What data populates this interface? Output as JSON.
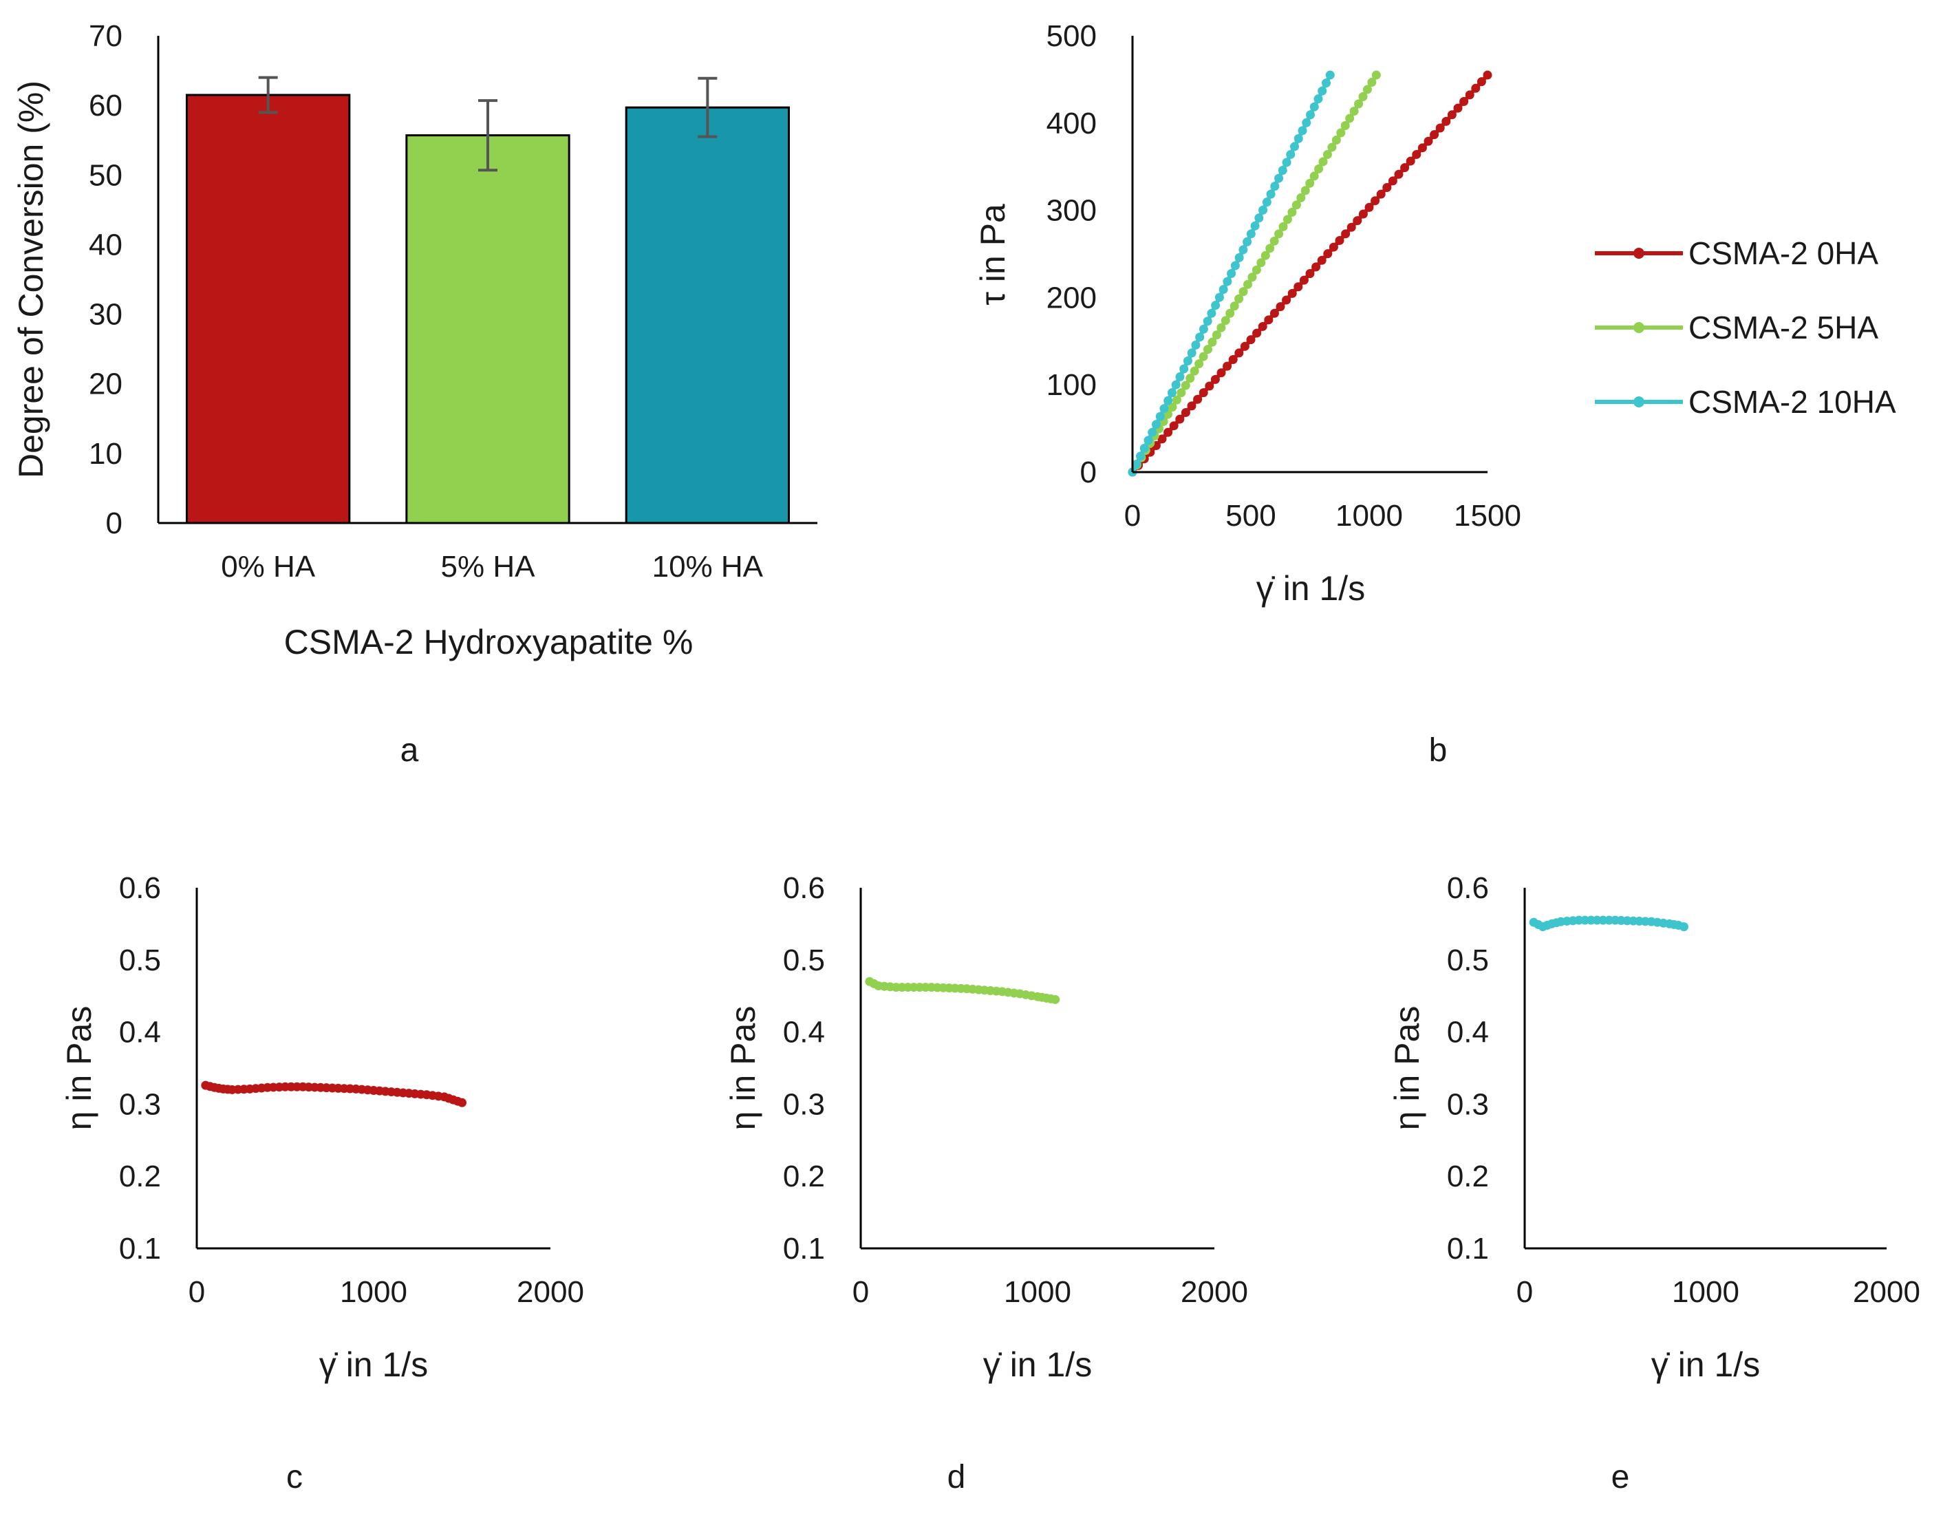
{
  "colors": {
    "red": "#bb1616",
    "green": "#92d050",
    "teal": "#1897ab",
    "cyan": "#3ec4cc",
    "axis": "#000000",
    "errorbar": "#555555"
  },
  "chart_data": [
    {
      "panel": "a",
      "type": "bar",
      "categories": [
        "0% HA",
        "5% HA",
        "10% HA"
      ],
      "values": [
        61.5,
        55.7,
        59.7
      ],
      "errors": [
        2.5,
        5.0,
        4.2
      ],
      "bar_colors": [
        "#bb1616",
        "#92d050",
        "#1897ab"
      ],
      "xlabel": "CSMA-2 Hydroxyapatite %",
      "ylabel": "Degree of Conversion (%)",
      "ylim": [
        0,
        70
      ],
      "yticks": [
        "0",
        "10",
        "20",
        "30",
        "40",
        "50",
        "60",
        "70"
      ],
      "label": "a"
    },
    {
      "panel": "b",
      "type": "line",
      "xlabel": "γ̇ in 1/s",
      "ylabel": "τ in Pa",
      "xlim": [
        0,
        1500
      ],
      "ylim": [
        0,
        500
      ],
      "xticks": [
        "0",
        "500",
        "1000",
        "1500"
      ],
      "yticks": [
        "0",
        "100",
        "200",
        "300",
        "400",
        "500"
      ],
      "legend_position": "right",
      "series": [
        {
          "name": "CSMA-2 0HA",
          "color": "#bb1616",
          "x_end": 1500,
          "y_end": 455,
          "points": 60
        },
        {
          "name": "CSMA-2 5HA",
          "color": "#92d050",
          "x_end": 1030,
          "y_end": 455,
          "points": 55
        },
        {
          "name": "CSMA-2 10HA",
          "color": "#3ec4cc",
          "x_end": 835,
          "y_end": 455,
          "points": 50
        }
      ],
      "label": "b"
    },
    {
      "panel": "c",
      "type": "scatter",
      "xlabel": "γ̇ in 1/s",
      "ylabel": "η in Pas",
      "xlim": [
        0,
        2000
      ],
      "ylim": [
        0.1,
        0.6
      ],
      "xticks": [
        "0",
        "1000",
        "2000"
      ],
      "yticks": [
        "0.1",
        "0.2",
        "0.3",
        "0.4",
        "0.5",
        "0.6"
      ],
      "color": "#bb1616",
      "x": [
        50,
        100,
        150,
        200,
        300,
        400,
        500,
        600,
        700,
        800,
        900,
        1000,
        1100,
        1200,
        1300,
        1400,
        1450,
        1500
      ],
      "y": [
        0.326,
        0.323,
        0.321,
        0.32,
        0.321,
        0.323,
        0.324,
        0.324,
        0.323,
        0.322,
        0.321,
        0.319,
        0.317,
        0.315,
        0.313,
        0.31,
        0.306,
        0.302
      ],
      "label": "c"
    },
    {
      "panel": "d",
      "type": "scatter",
      "xlabel": "γ̇ in 1/s",
      "ylabel": "η in Pas",
      "xlim": [
        0,
        2000
      ],
      "ylim": [
        0.1,
        0.6
      ],
      "xticks": [
        "0",
        "1000",
        "2000"
      ],
      "yticks": [
        "0.1",
        "0.2",
        "0.3",
        "0.4",
        "0.5",
        "0.6"
      ],
      "color": "#92d050",
      "x": [
        50,
        100,
        200,
        300,
        400,
        500,
        600,
        700,
        800,
        900,
        1000,
        1050,
        1100
      ],
      "y": [
        0.47,
        0.464,
        0.462,
        0.462,
        0.462,
        0.461,
        0.46,
        0.458,
        0.456,
        0.453,
        0.449,
        0.447,
        0.445
      ],
      "label": "d"
    },
    {
      "panel": "e",
      "type": "scatter",
      "xlabel": "γ̇ in 1/s",
      "ylabel": "η in Pas",
      "xlim": [
        0,
        2000
      ],
      "ylim": [
        0.1,
        0.6
      ],
      "xticks": [
        "0",
        "1000",
        "2000"
      ],
      "yticks": [
        "0.1",
        "0.2",
        "0.3",
        "0.4",
        "0.5",
        "0.6"
      ],
      "color": "#3ec4cc",
      "x": [
        50,
        100,
        150,
        200,
        300,
        400,
        500,
        600,
        700,
        800,
        850,
        880
      ],
      "y": [
        0.552,
        0.546,
        0.55,
        0.553,
        0.555,
        0.555,
        0.555,
        0.554,
        0.553,
        0.55,
        0.548,
        0.546
      ],
      "label": "e"
    }
  ]
}
